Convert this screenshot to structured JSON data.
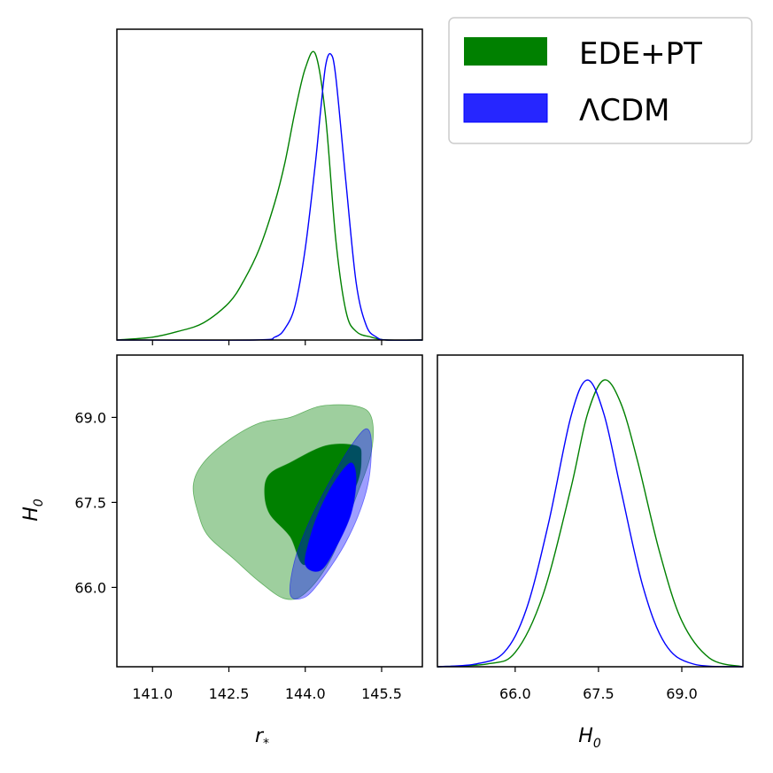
{
  "chart_data": {
    "type": "triangle-plot",
    "legend": {
      "placement": "top-right",
      "entries": [
        {
          "name": "EDE+PT",
          "color": "#008000"
        },
        {
          "name": "ΛCDM",
          "color": "#0000ff"
        }
      ]
    },
    "parameters": {
      "r_star": {
        "label_main": "r",
        "label_sub": "*",
        "range": [
          140.3,
          146.3
        ],
        "ticks": [
          141.0,
          142.5,
          144.0,
          145.5
        ],
        "tick_labels": [
          "141.0",
          "142.5",
          "144.0",
          "145.5"
        ]
      },
      "H0": {
        "label_main": "H",
        "label_sub": "0",
        "range": [
          64.6,
          70.1
        ],
        "ticks": [
          66.0,
          67.5,
          69.0
        ],
        "tick_labels": [
          "66.0",
          "67.5",
          "69.0"
        ]
      }
    },
    "marginal_r_star": {
      "series": [
        {
          "name": "EDE+PT",
          "color": "#008000",
          "x": [
            140.3,
            141.0,
            141.5,
            142.0,
            142.5,
            142.8,
            143.1,
            143.4,
            143.6,
            143.8,
            144.0,
            144.2,
            144.4,
            144.6,
            144.8,
            145.0,
            145.3,
            145.6,
            146.3
          ],
          "y": [
            0.0,
            0.01,
            0.03,
            0.06,
            0.13,
            0.21,
            0.32,
            0.48,
            0.62,
            0.8,
            0.95,
            1.0,
            0.78,
            0.35,
            0.1,
            0.03,
            0.01,
            0.0,
            0.0
          ]
        },
        {
          "name": "ΛCDM",
          "color": "#0000ff",
          "x": [
            140.3,
            143.0,
            143.4,
            143.6,
            143.8,
            144.0,
            144.2,
            144.3,
            144.4,
            144.5,
            144.6,
            144.8,
            145.0,
            145.2,
            145.4,
            145.6,
            146.3
          ],
          "y": [
            0.0,
            0.0,
            0.01,
            0.04,
            0.12,
            0.32,
            0.62,
            0.8,
            0.96,
            1.0,
            0.92,
            0.55,
            0.2,
            0.05,
            0.01,
            0.0,
            0.0
          ]
        }
      ]
    },
    "marginal_H0": {
      "series": [
        {
          "name": "EDE+PT",
          "color": "#008000",
          "x": [
            64.6,
            65.5,
            66.0,
            66.5,
            67.0,
            67.3,
            67.6,
            67.9,
            68.2,
            68.6,
            69.0,
            69.5,
            70.1
          ],
          "y": [
            0.0,
            0.01,
            0.05,
            0.25,
            0.62,
            0.88,
            1.0,
            0.92,
            0.72,
            0.4,
            0.16,
            0.03,
            0.0
          ]
        },
        {
          "name": "ΛCDM",
          "color": "#0000ff",
          "x": [
            64.6,
            65.3,
            65.8,
            66.2,
            66.6,
            67.0,
            67.3,
            67.6,
            67.9,
            68.3,
            68.7,
            69.2,
            70.1
          ],
          "y": [
            0.0,
            0.01,
            0.05,
            0.2,
            0.5,
            0.87,
            1.0,
            0.88,
            0.62,
            0.28,
            0.08,
            0.01,
            0.0
          ]
        }
      ]
    },
    "contours_2d": [
      {
        "name": "EDE+PT",
        "level": "95%",
        "color": "#008000",
        "opacity": 0.38,
        "points": [
          [
            143.6,
            65.8
          ],
          [
            143.1,
            66.1
          ],
          [
            142.6,
            66.5
          ],
          [
            142.1,
            66.9
          ],
          [
            141.9,
            67.3
          ],
          [
            141.8,
            67.8
          ],
          [
            142.0,
            68.2
          ],
          [
            142.5,
            68.6
          ],
          [
            143.1,
            68.9
          ],
          [
            143.7,
            69.0
          ],
          [
            144.3,
            69.2
          ],
          [
            145.0,
            69.2
          ],
          [
            145.3,
            69.0
          ],
          [
            145.3,
            68.4
          ],
          [
            145.0,
            67.6
          ],
          [
            144.5,
            66.5
          ],
          [
            144.0,
            65.9
          ]
        ]
      },
      {
        "name": "EDE+PT",
        "level": "68%",
        "color": "#008000",
        "opacity": 1.0,
        "points": [
          [
            144.0,
            66.4
          ],
          [
            143.7,
            66.9
          ],
          [
            143.3,
            67.3
          ],
          [
            143.2,
            67.7
          ],
          [
            143.3,
            68.0
          ],
          [
            143.7,
            68.2
          ],
          [
            144.4,
            68.5
          ],
          [
            145.0,
            68.5
          ],
          [
            145.1,
            68.3
          ],
          [
            145.0,
            67.8
          ],
          [
            144.5,
            67.1
          ]
        ]
      },
      {
        "name": "ΛCDM",
        "level": "95%",
        "color": "#0000ff",
        "opacity": 0.38,
        "points": [
          [
            143.7,
            65.9
          ],
          [
            143.8,
            66.5
          ],
          [
            144.1,
            67.2
          ],
          [
            144.5,
            67.9
          ],
          [
            144.9,
            68.5
          ],
          [
            145.2,
            68.8
          ],
          [
            145.3,
            68.5
          ],
          [
            145.2,
            67.7
          ],
          [
            144.8,
            66.8
          ],
          [
            144.2,
            66.0
          ],
          [
            143.9,
            65.8
          ]
        ]
      },
      {
        "name": "ΛCDM",
        "level": "68%",
        "color": "#0000ff",
        "opacity": 1.0,
        "points": [
          [
            144.0,
            66.4
          ],
          [
            144.1,
            66.9
          ],
          [
            144.3,
            67.4
          ],
          [
            144.6,
            67.9
          ],
          [
            144.9,
            68.2
          ],
          [
            145.0,
            67.9
          ],
          [
            144.9,
            67.3
          ],
          [
            144.6,
            66.7
          ],
          [
            144.3,
            66.3
          ]
        ]
      }
    ]
  }
}
